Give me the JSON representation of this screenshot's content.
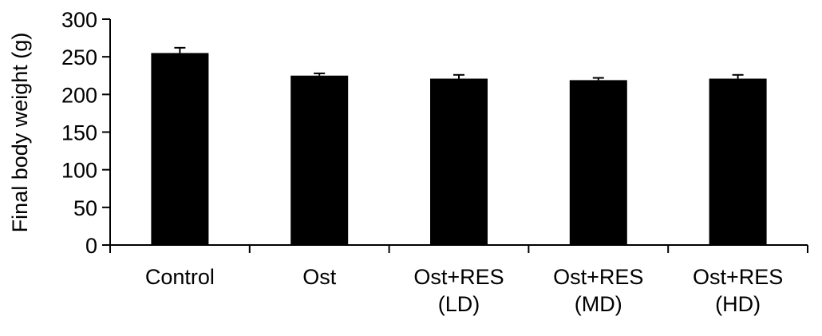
{
  "chart_data": {
    "type": "bar",
    "categories": [
      [
        "Control"
      ],
      [
        "Ost"
      ],
      [
        "Ost+RES",
        "(LD)"
      ],
      [
        "Ost+RES",
        "(MD)"
      ],
      [
        "Ost+RES",
        "(HD)"
      ]
    ],
    "values": [
      255,
      225,
      221,
      219,
      221
    ],
    "errors": [
      7,
      3,
      5,
      3,
      5
    ],
    "xlabel": "",
    "ylabel": "Final body weight (g)",
    "ylim": [
      0,
      300
    ],
    "yticks": [
      "0",
      "50",
      "100",
      "150",
      "200",
      "250",
      "300"
    ],
    "grid": false,
    "legend": "none",
    "bar_color": "#000000",
    "axis_color": "#000000"
  }
}
